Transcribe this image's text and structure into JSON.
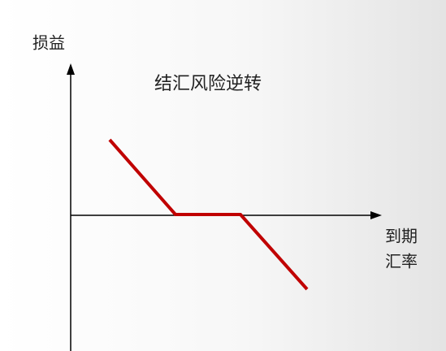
{
  "title": "结汇风险逆转",
  "axes": {
    "y_label": "损益",
    "x_label": [
      "到期",
      "汇率"
    ]
  }
}
